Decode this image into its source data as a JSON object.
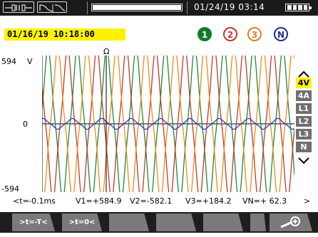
{
  "status_bar": {
    "clock": "01/24/19  03:14",
    "memory_fill_fraction": 1.0,
    "battery_level_bars": 4
  },
  "capture_time": "01/16/19  10:18:00",
  "channels": [
    {
      "label": "1",
      "color": "#137a2e",
      "filled": true
    },
    {
      "label": "2",
      "color": "#c0392b",
      "filled": false
    },
    {
      "label": "3",
      "color": "#e67e22",
      "filled": false
    },
    {
      "label": "N",
      "color": "#1f2f8f",
      "filled": false
    }
  ],
  "chart_data": {
    "type": "line",
    "ylim": [
      -594,
      594
    ],
    "y_tick_labels": {
      "max": "594",
      "zero": "0",
      "min": "-594"
    },
    "y_unit": "V",
    "trigger_marker": "Ω",
    "grid": false,
    "series": [
      {
        "color": "#1c8a3a",
        "amplitude": 560,
        "phase_deg": 0
      },
      {
        "color": "#c0392b",
        "amplitude": 560,
        "phase_deg": 120
      },
      {
        "color": "#f08a1c",
        "amplitude": 560,
        "phase_deg": 240
      },
      {
        "color": "#1f3fbf",
        "amplitude": 40,
        "phase_deg": 60
      }
    ],
    "cycles_shown": 8.6
  },
  "scale_menu": {
    "items": [
      "4V",
      "4A",
      "L1",
      "L2",
      "L3",
      "N"
    ],
    "active": "4V",
    "up_arrow": "^",
    "down_arrow": "v"
  },
  "cursor_readout": {
    "left_marker": "<t=",
    "time": "-0.1ms",
    "v1": "V1=+584.9",
    "v2": "V2=-582.1",
    "v3": "V3=+184.2",
    "vn": "VN=+ 62.3",
    "right_marker": ">"
  },
  "soft_keys": [
    {
      "label": ">t=-T<"
    },
    {
      "label": ">t=0<"
    },
    {
      "label": ""
    },
    {
      "label": ""
    },
    {
      "label": ""
    },
    {
      "label": ""
    },
    {
      "label": "zoom-plus-icon"
    }
  ]
}
